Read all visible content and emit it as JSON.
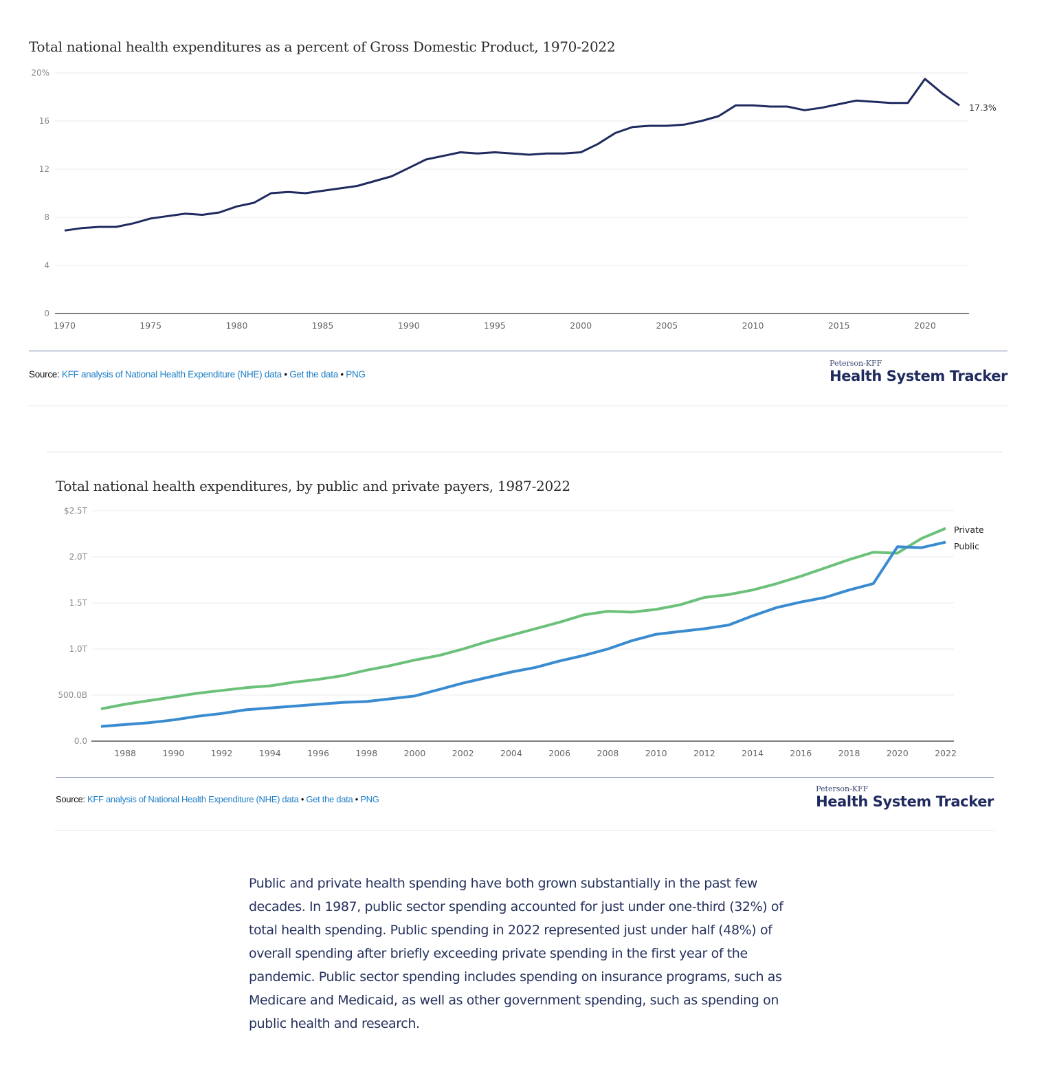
{
  "chart_data": [
    {
      "type": "line",
      "title": "Total national health expenditures as a percent of Gross Domestic Product, 1970-2022",
      "xlabel": "",
      "ylabel": "",
      "x": [
        1970,
        1971,
        1972,
        1973,
        1974,
        1975,
        1976,
        1977,
        1978,
        1979,
        1980,
        1981,
        1982,
        1983,
        1984,
        1985,
        1986,
        1987,
        1988,
        1989,
        1990,
        1991,
        1992,
        1993,
        1994,
        1995,
        1996,
        1997,
        1998,
        1999,
        2000,
        2001,
        2002,
        2003,
        2004,
        2005,
        2006,
        2007,
        2008,
        2009,
        2010,
        2011,
        2012,
        2013,
        2014,
        2015,
        2016,
        2017,
        2018,
        2019,
        2020,
        2021,
        2022
      ],
      "series": [
        {
          "values": [
            6.9,
            7.1,
            7.2,
            7.2,
            7.5,
            7.9,
            8.1,
            8.3,
            8.2,
            8.4,
            8.9,
            9.2,
            10.0,
            10.1,
            10.0,
            10.2,
            10.4,
            10.6,
            11.0,
            11.4,
            12.1,
            12.8,
            13.1,
            13.4,
            13.3,
            13.4,
            13.3,
            13.2,
            13.3,
            13.3,
            13.4,
            14.1,
            15.0,
            15.5,
            15.6,
            15.6,
            15.7,
            16.0,
            16.4,
            17.3,
            17.3,
            17.2,
            17.2,
            16.9,
            17.1,
            17.4,
            17.7,
            17.6,
            17.5,
            17.5,
            19.5,
            18.3,
            17.3
          ],
          "color": "#1f2a5e"
        }
      ],
      "end_label": "17.3%",
      "ylim": [
        0,
        20
      ],
      "yticks": [
        0,
        4,
        8,
        12,
        16,
        20
      ],
      "ytick_labels": [
        "0",
        "4",
        "8",
        "12",
        "16",
        "20%"
      ],
      "xticks": [
        1970,
        1975,
        1980,
        1985,
        1990,
        1995,
        2000,
        2005,
        2010,
        2015,
        2020
      ],
      "xtick_labels": [
        "1970",
        "1975",
        "1980",
        "1985",
        "1990",
        "1995",
        "2000",
        "2005",
        "2010",
        "2015",
        "2020"
      ],
      "xlim": [
        1970,
        2022
      ],
      "grid": true,
      "legend": "none"
    },
    {
      "type": "line",
      "title": "Total national health expenditures, by public and private payers, 1987-2022",
      "xlabel": "",
      "ylabel": "",
      "x": [
        1987,
        1988,
        1989,
        1990,
        1991,
        1992,
        1993,
        1994,
        1995,
        1996,
        1997,
        1998,
        1999,
        2000,
        2001,
        2002,
        2003,
        2004,
        2005,
        2006,
        2007,
        2008,
        2009,
        2010,
        2011,
        2012,
        2013,
        2014,
        2015,
        2016,
        2017,
        2018,
        2019,
        2020,
        2021,
        2022
      ],
      "unit": "trillions USD",
      "series": [
        {
          "name": "Private",
          "color": "#6cc17a",
          "values": [
            0.35,
            0.4,
            0.44,
            0.48,
            0.52,
            0.55,
            0.58,
            0.6,
            0.64,
            0.67,
            0.71,
            0.77,
            0.82,
            0.88,
            0.93,
            1.0,
            1.08,
            1.15,
            1.22,
            1.29,
            1.37,
            1.41,
            1.4,
            1.43,
            1.48,
            1.56,
            1.59,
            1.64,
            1.71,
            1.79,
            1.88,
            1.97,
            2.05,
            2.04,
            2.2,
            2.31
          ]
        },
        {
          "name": "Public",
          "color": "#3a8bd0",
          "values": [
            0.16,
            0.18,
            0.2,
            0.23,
            0.27,
            0.3,
            0.34,
            0.36,
            0.38,
            0.4,
            0.42,
            0.43,
            0.46,
            0.49,
            0.56,
            0.63,
            0.69,
            0.75,
            0.8,
            0.87,
            0.93,
            1.0,
            1.09,
            1.16,
            1.19,
            1.22,
            1.26,
            1.36,
            1.45,
            1.51,
            1.56,
            1.64,
            1.71,
            2.11,
            2.1,
            2.16
          ]
        }
      ],
      "ylim": [
        0,
        2.5
      ],
      "yticks": [
        0,
        0.5,
        1.0,
        1.5,
        2.0,
        2.5
      ],
      "ytick_labels": [
        "0.0",
        "500.0B",
        "1.0T",
        "1.5T",
        "2.0T",
        "$2.5T"
      ],
      "xticks": [
        1988,
        1990,
        1992,
        1994,
        1996,
        1998,
        2000,
        2002,
        2004,
        2006,
        2008,
        2010,
        2012,
        2014,
        2016,
        2018,
        2020,
        2022
      ],
      "xtick_labels": [
        "1988",
        "1990",
        "1992",
        "1994",
        "1996",
        "1998",
        "2000",
        "2002",
        "2004",
        "2006",
        "2008",
        "2010",
        "2012",
        "2014",
        "2016",
        "2018",
        "2020",
        "2022"
      ],
      "xlim": [
        1987,
        2022
      ],
      "grid": true,
      "legend": "right-end labels"
    }
  ],
  "source": {
    "label": "Source:",
    "link": "KFF analysis of National Health Expenditure (NHE) data",
    "sep": "•",
    "get_data": "Get the data",
    "png": "PNG"
  },
  "logo": {
    "small": "Peterson-KFF",
    "big": "Health System Tracker"
  },
  "paragraph": "Public and private health spending have both grown substantially in the past few decades. In 1987, public sector spending accounted for just under one-third (32%) of total health spending. Public spending in 2022 represented just under half (48%) of overall spending after briefly exceeding private spending in the first year of the pandemic. Public sector spending includes spending on insurance programs, such as Medicare and Medicaid, as well as other government spending, such as spending on public health and research.",
  "colors": {
    "navy": "#1f2a5e",
    "link": "#1f7fc7",
    "rule": "#6b78a8"
  }
}
